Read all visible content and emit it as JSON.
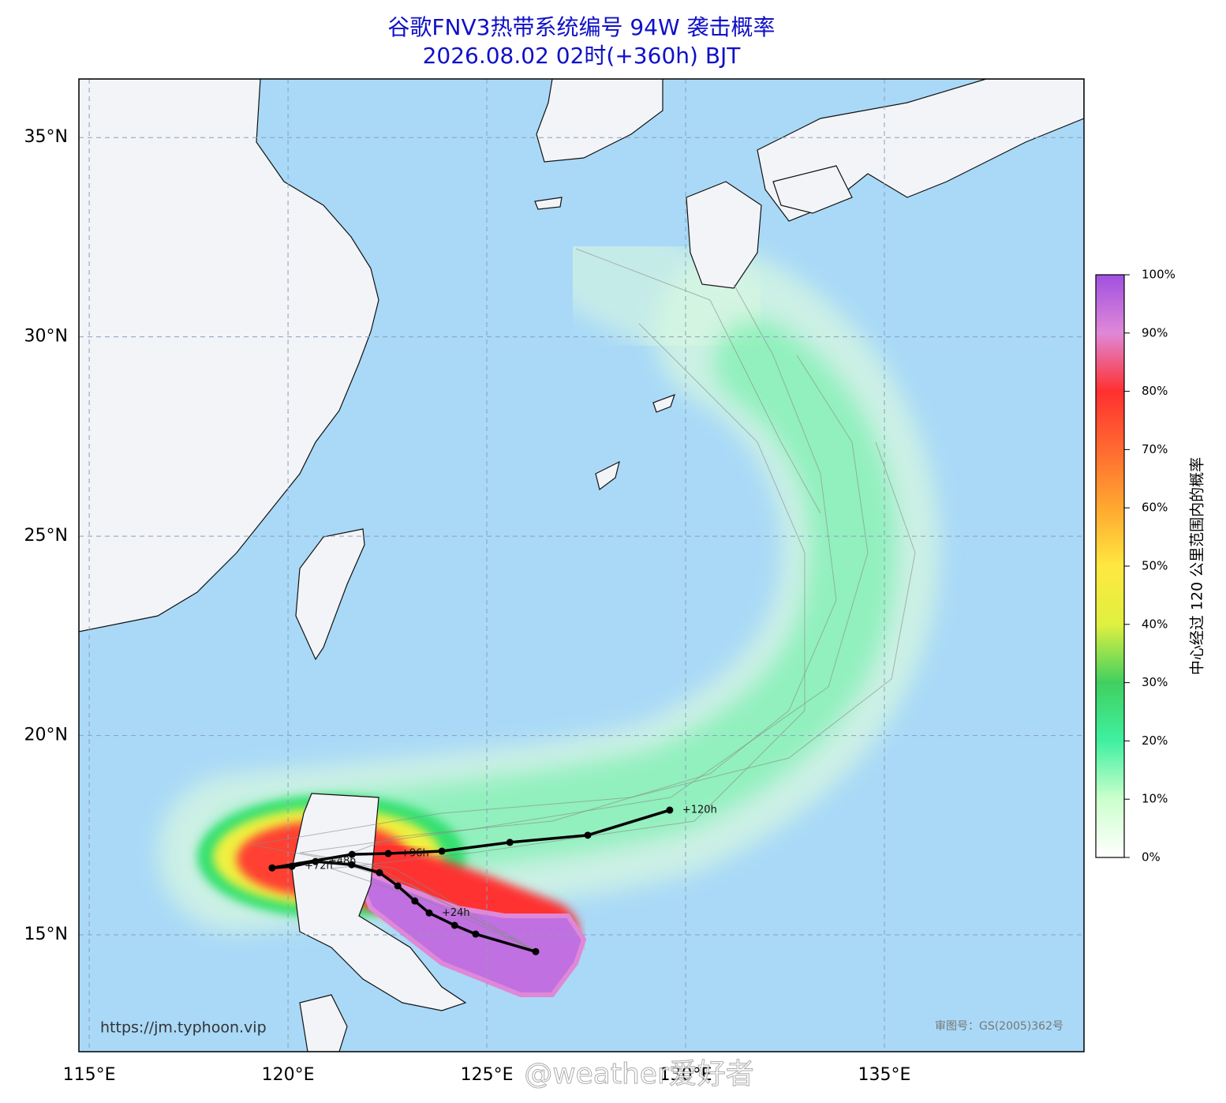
{
  "title": "谷歌FNV3热带系统编号 94W 袭击概率",
  "subtitle": "2026.08.02 02时(+360h) BJT",
  "map": {
    "xlim": [
      114.74,
      140.02
    ],
    "ylim": [
      12.07,
      36.47
    ],
    "xticks": [
      {
        "value": 115,
        "label": "115°E"
      },
      {
        "value": 120,
        "label": "120°E"
      },
      {
        "value": 125,
        "label": "125°E"
      },
      {
        "value": 130,
        "label": "130°E"
      },
      {
        "value": 135,
        "label": "135°E"
      }
    ],
    "yticks": [
      {
        "value": 15,
        "label": "15°N"
      },
      {
        "value": 20,
        "label": "20°N"
      },
      {
        "value": 25,
        "label": "25°N"
      },
      {
        "value": 30,
        "label": "30°N"
      },
      {
        "value": 35,
        "label": "35°N"
      }
    ],
    "grid": true,
    "track": {
      "color": "#000000",
      "lon": [
        126.23,
        124.72,
        124.19,
        123.55,
        123.19,
        122.76,
        122.3,
        121.6,
        120.69,
        120.1,
        119.6,
        121.61,
        122.52,
        123.87,
        125.58,
        127.54,
        129.6
      ],
      "lat": [
        14.58,
        15.02,
        15.24,
        15.55,
        15.85,
        16.23,
        16.56,
        16.76,
        16.84,
        16.72,
        16.68,
        17.02,
        17.04,
        17.1,
        17.32,
        17.5,
        18.13
      ],
      "labels": [
        null,
        null,
        null,
        "+24h",
        null,
        null,
        null,
        null,
        "+48h",
        "+72h",
        null,
        null,
        "+96h",
        null,
        null,
        null,
        "+120h"
      ]
    }
  },
  "colorbar": {
    "label": "中心经过 120 公里范围内的概率",
    "lim": [
      0,
      100
    ],
    "ticks": [
      {
        "value": 0,
        "label": "0%"
      },
      {
        "value": 10,
        "label": "10%"
      },
      {
        "value": 20,
        "label": "20%"
      },
      {
        "value": 30,
        "label": "30%"
      },
      {
        "value": 40,
        "label": "40%"
      },
      {
        "value": 50,
        "label": "50%"
      },
      {
        "value": 60,
        "label": "60%"
      },
      {
        "value": 70,
        "label": "70%"
      },
      {
        "value": 80,
        "label": "80%"
      },
      {
        "value": 90,
        "label": "90%"
      },
      {
        "value": 100,
        "label": "100%"
      }
    ]
  },
  "source": "https://jm.typhoon.vip",
  "approval": "审图号：GS(2005)362号",
  "watermark": "@weather爱好者"
}
